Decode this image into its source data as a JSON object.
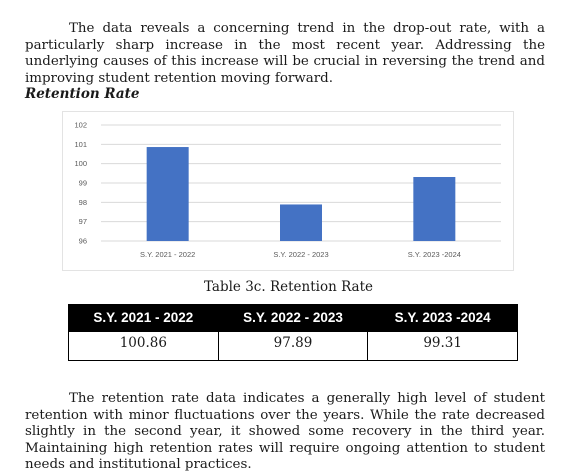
{
  "intro_paragraph": "The data reveals a concerning trend in the drop-out rate, with a particularly sharp increase in the most recent year. Addressing the underlying causes of this increase will be crucial in reversing the trend and improving student retention moving forward.",
  "section_heading": "Retention Rate",
  "chart_data": {
    "type": "bar",
    "categories": [
      "S.Y. 2021 - 2022",
      "S.Y. 2022 - 2023",
      "S.Y. 2023 -2024"
    ],
    "values": [
      100.86,
      97.89,
      99.31
    ],
    "ylim": [
      96,
      102
    ],
    "yticks": [
      "96",
      "97",
      "98",
      "99",
      "100",
      "101",
      "102"
    ],
    "bar_color": "#4472c4",
    "grid": true,
    "legend": "none"
  },
  "table": {
    "caption": "Table 3c. Retention Rate",
    "headers": [
      "S.Y. 2021 - 2022",
      "S.Y. 2022 - 2023",
      "S.Y. 2023 -2024"
    ],
    "rows": [
      [
        "100.86",
        "97.89",
        "99.31"
      ]
    ]
  },
  "outro_paragraph": "The retention rate data indicates a generally high level of student retention with minor fluctuations over the years. While the rate decreased slightly in the second year, it showed some recovery in the third year. Maintaining high retention rates will require ongoing attention to student needs and institutional practices."
}
